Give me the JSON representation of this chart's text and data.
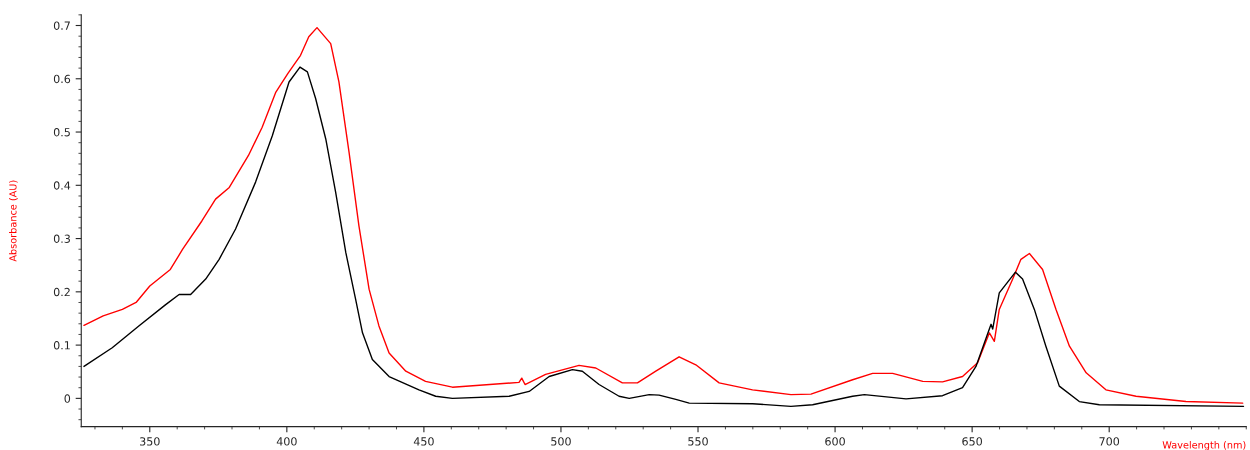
{
  "chart_data": {
    "type": "line",
    "xlabel": "Wavelength (nm)",
    "ylabel": "Absorbance (AU)",
    "xlim": [
      325,
      750
    ],
    "ylim": [
      -0.053,
      0.72
    ],
    "xticks": [
      350,
      400,
      450,
      500,
      550,
      600,
      650,
      700
    ],
    "yticks": [
      0,
      0.1,
      0.2,
      0.3,
      0.4,
      0.5,
      0.6,
      0.7
    ],
    "grid": false,
    "legend": false,
    "marker": "none",
    "line_style": "solid",
    "series": [
      {
        "color": "#ff0000",
        "x": [
          326,
          333,
          340,
          345,
          350,
          357.5,
          362,
          369,
          374,
          379,
          386,
          391,
          396,
          400.4,
          405,
          408,
          411,
          416,
          419,
          422.7,
          426.3,
          430,
          433.6,
          437.3,
          443.4,
          450.6,
          460.4,
          484.7,
          485.7,
          486.9,
          494.4,
          506.6,
          512.7,
          522.4,
          527.9,
          534.6,
          543.1,
          549.2,
          557.7,
          569.9,
          583.9,
          591.2,
          606.4,
          613.7,
          621,
          632,
          639.2,
          646.5,
          652,
          656.3,
          658.1,
          659.9,
          664.8,
          667.8,
          670.9,
          675.7,
          680.6,
          685.5,
          691.6,
          698.8,
          709.8,
          728,
          748.7
        ],
        "values": [
          0.137,
          0.155,
          0.167,
          0.18,
          0.211,
          0.242,
          0.28,
          0.333,
          0.374,
          0.396,
          0.456,
          0.509,
          0.575,
          0.61,
          0.644,
          0.679,
          0.696,
          0.666,
          0.594,
          0.462,
          0.324,
          0.205,
          0.136,
          0.085,
          0.051,
          0.032,
          0.021,
          0.03,
          0.038,
          0.026,
          0.045,
          0.062,
          0.057,
          0.029,
          0.029,
          0.051,
          0.078,
          0.063,
          0.029,
          0.016,
          0.007,
          0.008,
          0.035,
          0.047,
          0.047,
          0.032,
          0.031,
          0.041,
          0.067,
          0.123,
          0.107,
          0.167,
          0.224,
          0.261,
          0.272,
          0.242,
          0.167,
          0.098,
          0.048,
          0.016,
          0.004,
          -0.006,
          -0.009
        ]
      },
      {
        "color": "#000000",
        "x": [
          326,
          336.3,
          346,
          355.8,
          360.7,
          364.9,
          370.4,
          375.3,
          381.3,
          388.6,
          394.7,
          400.8,
          404.8,
          407.5,
          410.5,
          414.2,
          417.8,
          421.5,
          425.1,
          427.6,
          431.2,
          437.3,
          448.2,
          454.3,
          460.4,
          481.1,
          488.4,
          495.7,
          504.2,
          507.8,
          513.9,
          521.2,
          524.9,
          532.2,
          535.8,
          541.9,
          546.8,
          569.9,
          583.9,
          591.8,
          606.4,
          610.7,
          625.9,
          639.2,
          646.5,
          651.4,
          656.9,
          657.5,
          659.9,
          665.8,
          668.4,
          672.7,
          676.9,
          681.8,
          689.1,
          696.4,
          749
        ],
        "values": [
          0.06,
          0.095,
          0.136,
          0.176,
          0.195,
          0.195,
          0.224,
          0.261,
          0.318,
          0.406,
          0.493,
          0.594,
          0.622,
          0.613,
          0.563,
          0.487,
          0.387,
          0.274,
          0.186,
          0.123,
          0.073,
          0.041,
          0.016,
          0.004,
          0.0,
          0.004,
          0.013,
          0.041,
          0.054,
          0.051,
          0.026,
          0.004,
          0.0,
          0.007,
          0.006,
          -0.002,
          -0.009,
          -0.01,
          -0.015,
          -0.012,
          0.004,
          0.007,
          -0.001,
          0.005,
          0.02,
          0.06,
          0.139,
          0.13,
          0.198,
          0.237,
          0.224,
          0.167,
          0.098,
          0.023,
          -0.006,
          -0.012,
          -0.015
        ]
      }
    ]
  }
}
